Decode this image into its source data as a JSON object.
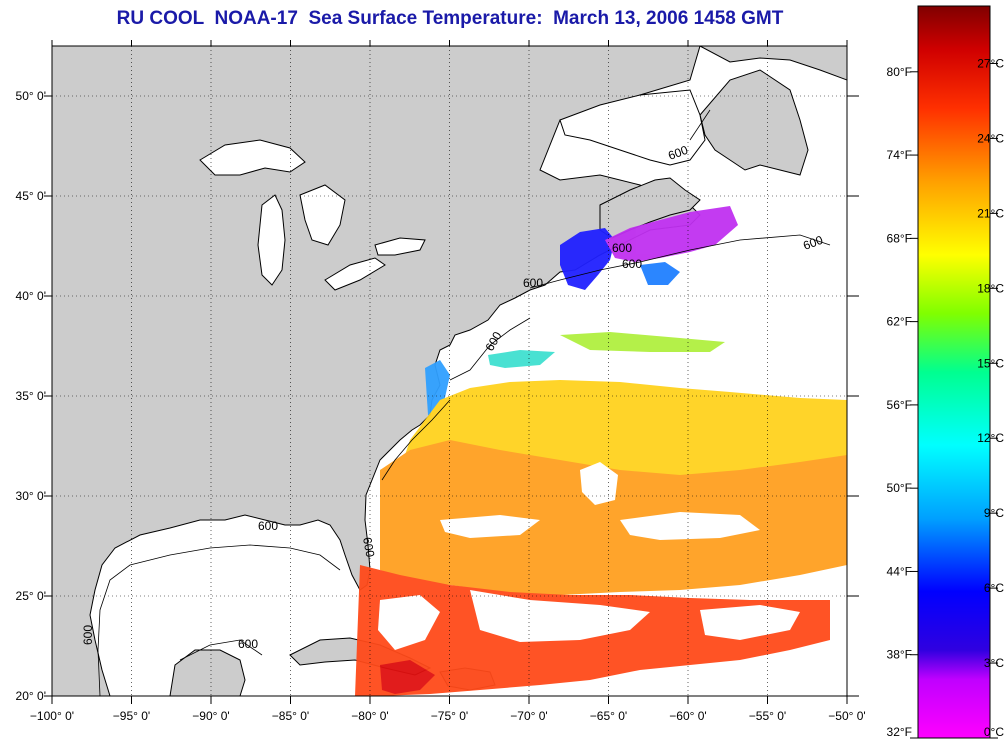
{
  "header": {
    "title": "RU COOL  NOAA-17  Sea Surface Temperature:  March 13, 2006 1458 GMT"
  },
  "map": {
    "lon_range": [
      -100,
      -50
    ],
    "lat_range": [
      20,
      52.5
    ],
    "lat_ticks": [
      {
        "value": 20,
        "label": "20° 0'"
      },
      {
        "value": 25,
        "label": "25° 0'"
      },
      {
        "value": 30,
        "label": "30° 0'"
      },
      {
        "value": 35,
        "label": "35° 0'"
      },
      {
        "value": 40,
        "label": "40° 0'"
      },
      {
        "value": 45,
        "label": "45° 0'"
      },
      {
        "value": 50,
        "label": "50° 0'"
      }
    ],
    "lon_ticks": [
      {
        "value": -100,
        "label": "−100° 0'"
      },
      {
        "value": -95,
        "label": "−95° 0'"
      },
      {
        "value": -90,
        "label": "−90° 0'"
      },
      {
        "value": -85,
        "label": "−85° 0'"
      },
      {
        "value": -80,
        "label": "−80° 0'"
      },
      {
        "value": -75,
        "label": "−75° 0'"
      },
      {
        "value": -70,
        "label": "−70° 0'"
      },
      {
        "value": -65,
        "label": "−65° 0'"
      },
      {
        "value": -60,
        "label": "−60° 0'"
      },
      {
        "value": -55,
        "label": "−55° 0'"
      },
      {
        "value": -50,
        "label": "−50° 0'"
      }
    ],
    "isobath_label": "600",
    "land_color": "#cccccc",
    "ocean_color": "#ffffff"
  },
  "colorbar": {
    "celsius_ticks": [
      {
        "value": 0,
        "label": "0°C"
      },
      {
        "value": 3,
        "label": "3°C"
      },
      {
        "value": 6,
        "label": "6°C"
      },
      {
        "value": 9,
        "label": "9°C"
      },
      {
        "value": 12,
        "label": "12°C"
      },
      {
        "value": 15,
        "label": "15°C"
      },
      {
        "value": 18,
        "label": "18°C"
      },
      {
        "value": 21,
        "label": "21°C"
      },
      {
        "value": 24,
        "label": "24°C"
      },
      {
        "value": 27,
        "label": "27°C"
      }
    ],
    "fahrenheit_ticks": [
      {
        "value": 32,
        "label": "32°F"
      },
      {
        "value": 38,
        "label": "38°F"
      },
      {
        "value": 44,
        "label": "44°F"
      },
      {
        "value": 50,
        "label": "50°F"
      },
      {
        "value": 56,
        "label": "56°F"
      },
      {
        "value": 62,
        "label": "62°F"
      },
      {
        "value": 68,
        "label": "68°F"
      },
      {
        "value": 74,
        "label": "74°F"
      },
      {
        "value": 80,
        "label": "80°F"
      }
    ],
    "colors": [
      "#ff00ff",
      "#8000d0",
      "#0000ff",
      "#00a0ff",
      "#00ffff",
      "#00ff80",
      "#80ff00",
      "#ffff00",
      "#ffa000",
      "#ff4000",
      "#c00000",
      "#800000"
    ]
  }
}
